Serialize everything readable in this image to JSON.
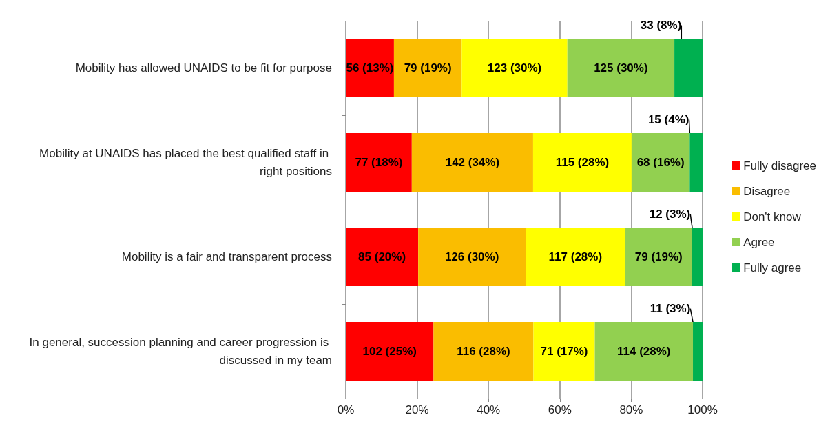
{
  "chart_data": {
    "type": "bar",
    "orientation": "horizontal",
    "stacked": true,
    "categories": [
      "Mobility has allowed UNAIDS to be fit for purpose",
      "Mobility at UNAIDS has placed the best qualified staff in right positions",
      "Mobility is a fair and transparent process",
      "In general, succession planning and career progression is discussed in my team"
    ],
    "series": [
      {
        "name": "Fully disagree",
        "color": "#ff0000",
        "values": [
          13.5,
          18.5,
          20.3,
          24.6
        ],
        "value_labels": [
          "56 (13%)",
          "77 (18%)",
          "85 (20%)",
          "102 (25%)"
        ]
      },
      {
        "name": "Disagree",
        "color": "#fabd00",
        "values": [
          19.0,
          34.0,
          30.1,
          28.0
        ],
        "value_labels": [
          "79 (19%)",
          "142 (34%)",
          "126 (30%)",
          "116 (28%)"
        ]
      },
      {
        "name": "Don't know",
        "color": "#ffff00",
        "values": [
          29.6,
          27.6,
          27.9,
          17.2
        ],
        "value_labels": [
          "123 (30%)",
          "115 (28%)",
          "117 (28%)",
          "71 (17%)"
        ]
      },
      {
        "name": "Agree",
        "color": "#92d050",
        "values": [
          30.0,
          16.3,
          18.8,
          27.5
        ],
        "value_labels": [
          "125 (30%)",
          "68 (16%)",
          "79 (19%)",
          "114 (28%)"
        ]
      },
      {
        "name": "Fully agree",
        "color": "#00b050",
        "values": [
          7.9,
          3.6,
          2.9,
          2.7
        ],
        "value_labels": [
          "33 (8%)",
          "15 (4%)",
          "12 (3%)",
          "11 (3%)"
        ]
      }
    ],
    "xlim": [
      0,
      100
    ],
    "xticks": [
      {
        "value": 0,
        "label": "0%"
      },
      {
        "value": 20,
        "label": "20%"
      },
      {
        "value": 40,
        "label": "40%"
      },
      {
        "value": 60,
        "label": "60%"
      },
      {
        "value": 80,
        "label": "80%"
      },
      {
        "value": 100,
        "label": "100%"
      }
    ],
    "grid": "x",
    "legend": "right"
  }
}
